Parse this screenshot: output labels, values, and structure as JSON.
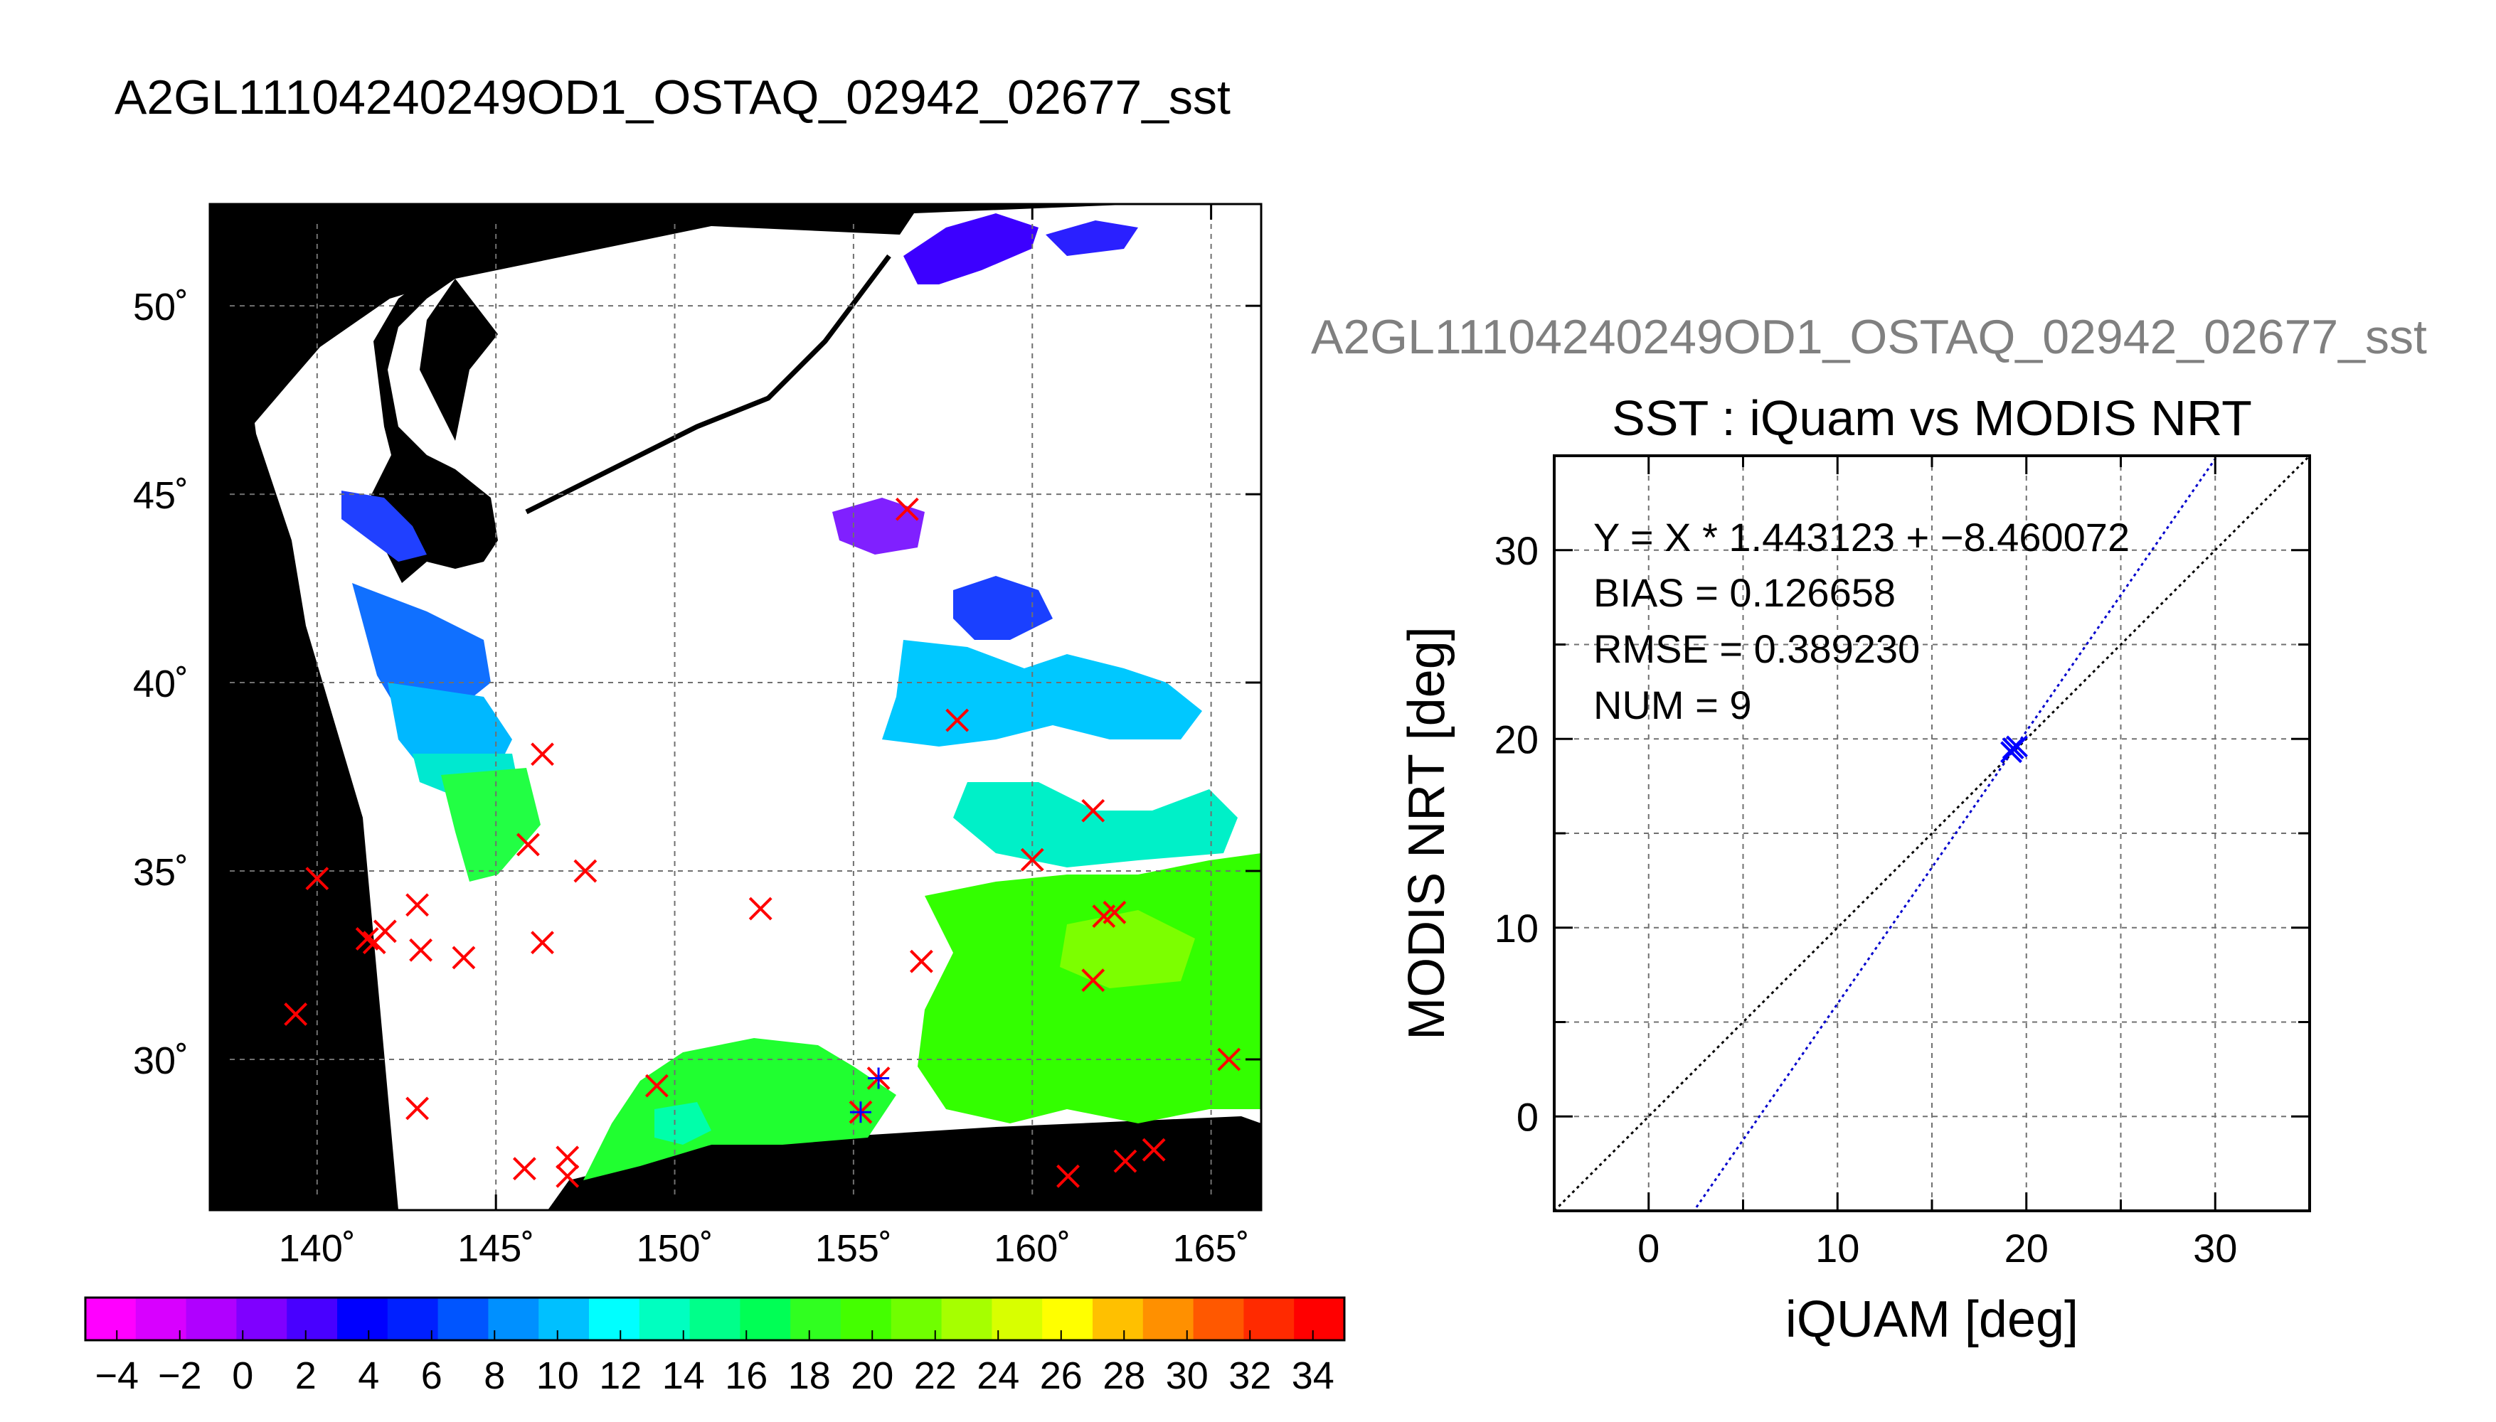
{
  "figure": {
    "main_title": "A2GL11104240249OD1_OSTAQ_02942_02677_sst",
    "right_title": "A2GL11104240249OD1_OSTAQ_02942_02677_sst"
  },
  "colors": {
    "map_background": "#000000",
    "swath": "#ffffff",
    "matchup_marker": "#ff0000",
    "fit_line": "#0000cc",
    "one_to_one_line": "#000000",
    "right_title": "#808080"
  },
  "chart_data": [
    {
      "type": "scatter",
      "title": "",
      "panel": "SST map",
      "xlim": [
        137,
        166.4
      ],
      "ylim": [
        26,
        52.7
      ],
      "x_ticks": [
        140,
        145,
        150,
        155,
        160,
        165
      ],
      "x_tick_labels": [
        "140˚",
        "145˚",
        "150˚",
        "155˚",
        "160˚",
        "165˚"
      ],
      "y_ticks": [
        30,
        35,
        40,
        45,
        50
      ],
      "y_tick_labels": [
        "30˚",
        "35˚",
        "40˚",
        "45˚",
        "50˚"
      ],
      "grid": true,
      "series": [
        {
          "marker": "x",
          "color": "#ff0000",
          "points": [
            [
              139.4,
              31.2
            ],
            [
              140.0,
              34.8
            ],
            [
              141.4,
              33.2
            ],
            [
              141.6,
              33.1
            ],
            [
              141.9,
              33.4
            ],
            [
              142.8,
              34.1
            ],
            [
              142.9,
              32.9
            ],
            [
              142.8,
              28.7
            ],
            [
              144.1,
              32.7
            ],
            [
              145.8,
              27.1
            ],
            [
              145.9,
              35.7
            ],
            [
              146.3,
              38.1
            ],
            [
              146.3,
              33.1
            ],
            [
              147.0,
              27.4
            ],
            [
              147.0,
              26.9
            ],
            [
              147.5,
              35.0
            ],
            [
              149.5,
              29.3
            ],
            [
              152.4,
              34.0
            ],
            [
              155.2,
              28.6
            ],
            [
              155.7,
              29.5
            ],
            [
              156.5,
              44.6
            ],
            [
              156.9,
              32.6
            ],
            [
              157.9,
              39.0
            ],
            [
              160.0,
              35.3
            ],
            [
              161.0,
              26.9
            ],
            [
              161.7,
              36.6
            ],
            [
              161.7,
              32.1
            ],
            [
              162.0,
              33.8
            ],
            [
              162.3,
              33.9
            ],
            [
              162.6,
              27.3
            ],
            [
              163.4,
              27.6
            ],
            [
              165.5,
              30.0
            ]
          ]
        },
        {
          "marker": "+",
          "color": "#0000ff",
          "points": [
            [
              155.2,
              28.6
            ],
            [
              155.7,
              29.5
            ]
          ]
        }
      ]
    },
    {
      "type": "colorbar",
      "min": -5,
      "max": 35,
      "tick_labels": [
        "−4",
        "−2",
        "0",
        "2",
        "4",
        "6",
        "8",
        "10",
        "12",
        "14",
        "16",
        "18",
        "20",
        "22",
        "24",
        "26",
        "28",
        "30",
        "32",
        "34"
      ],
      "tick_values": [
        -4,
        -2,
        0,
        2,
        4,
        6,
        8,
        10,
        12,
        14,
        16,
        18,
        20,
        22,
        24,
        26,
        28,
        30,
        32,
        34
      ],
      "colors": [
        "#ff00ff",
        "#d800ff",
        "#b000ff",
        "#7f00ff",
        "#4800ff",
        "#0000ff",
        "#0020ff",
        "#0055ff",
        "#0090ff",
        "#00c0ff",
        "#00ffff",
        "#00ffc0",
        "#00ff8a",
        "#00ff55",
        "#30ff20",
        "#44ff00",
        "#70ff00",
        "#a6ff00",
        "#d8ff00",
        "#ffff00",
        "#ffc000",
        "#ff9000",
        "#ff5800",
        "#ff2a00",
        "#ff0000"
      ]
    },
    {
      "type": "scatter",
      "title": "SST : iQuam vs MODIS NRT",
      "xlabel": "iQUAM [deg]",
      "ylabel": "MODIS NRT [deg]",
      "xlim": [
        -5,
        35
      ],
      "ylim": [
        -5,
        35
      ],
      "x_ticks": [
        0,
        10,
        20,
        30
      ],
      "y_ticks": [
        0,
        10,
        20,
        30
      ],
      "grid": true,
      "annotations": [
        "Y = X * 1.443123 + −8.460072",
        "BIAS = 0.126658",
        "RMSE = 0.389230",
        "NUM = 9"
      ],
      "fit": {
        "slope": 1.443123,
        "intercept": -8.460072
      },
      "series": [
        {
          "marker": "x",
          "color": "#0000ff",
          "x": [
            19.2,
            19.3,
            19.5
          ],
          "y": [
            19.3,
            19.5,
            19.6
          ]
        }
      ]
    }
  ]
}
